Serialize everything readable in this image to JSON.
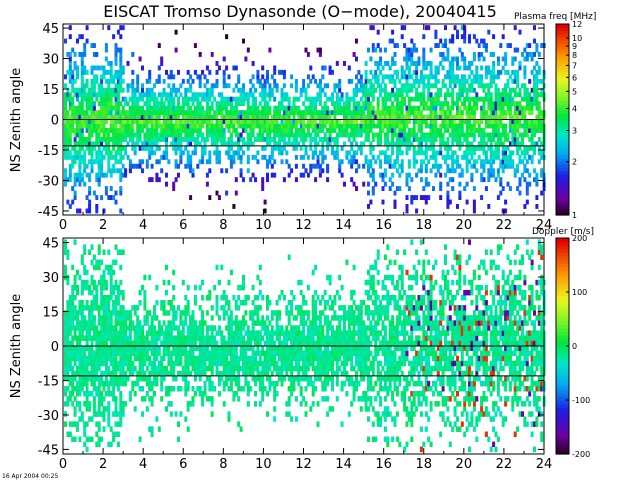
{
  "title": "EISCAT Tromso Dynasonde (O−mode),  20040415",
  "timestamp": "16 Apr 2004 00:25",
  "chart_data": [
    {
      "type": "heatmap",
      "panel": "top",
      "xlabel": "",
      "ylabel": "NS Zenith angle",
      "xlim": [
        0,
        24
      ],
      "ylim": [
        -47,
        47
      ],
      "xticks": [
        0,
        2,
        4,
        6,
        8,
        10,
        12,
        14,
        16,
        18,
        20,
        22,
        24
      ],
      "yticks": [
        -45,
        -30,
        -15,
        0,
        15,
        30,
        45
      ],
      "reference_lines": [
        0,
        -13
      ],
      "colorbar": {
        "label": "Plasma freq [MHz]",
        "scale": "log",
        "range": [
          1,
          12
        ],
        "ticks": [
          1,
          2,
          3,
          4,
          5,
          6,
          7,
          8,
          9,
          10,
          12
        ]
      }
    },
    {
      "type": "heatmap",
      "panel": "bottom",
      "xlabel": "",
      "ylabel": "NS Zenith angle",
      "xlim": [
        0,
        24
      ],
      "ylim": [
        -47,
        47
      ],
      "xticks": [
        0,
        2,
        4,
        6,
        8,
        10,
        12,
        14,
        16,
        18,
        20,
        22,
        24
      ],
      "yticks": [
        -45,
        -30,
        -15,
        0,
        15,
        30,
        45
      ],
      "reference_lines": [
        0,
        -13
      ],
      "colorbar": {
        "label": "Doppler [m/s]",
        "scale": "linear",
        "range": [
          -200,
          200
        ],
        "ticks": [
          -200,
          -100,
          0,
          100,
          200
        ]
      }
    }
  ]
}
